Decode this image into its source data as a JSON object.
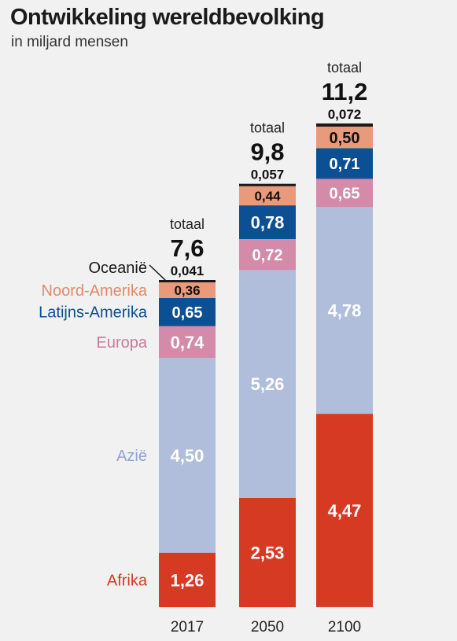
{
  "chart_data": {
    "type": "bar",
    "stacked": true,
    "title": "Ontwikkeling wereldbevolking",
    "subtitle": "in miljard mensen",
    "categories": [
      "2017",
      "2050",
      "2100"
    ],
    "series": [
      {
        "name": "Afrika",
        "color": "#d63a22",
        "values": [
          1.26,
          2.53,
          4.47
        ],
        "labels": [
          "1,26",
          "2,53",
          "4,47"
        ]
      },
      {
        "name": "Azië",
        "color": "#b0bedb",
        "values": [
          4.5,
          5.26,
          4.78
        ],
        "labels": [
          "4,50",
          "5,26",
          "4,78"
        ]
      },
      {
        "name": "Europa",
        "color": "#d48aa9",
        "values": [
          0.74,
          0.72,
          0.65
        ],
        "labels": [
          "0,74",
          "0,72",
          "0,65"
        ]
      },
      {
        "name": "Latijns-Amerika",
        "color": "#0d4f93",
        "values": [
          0.65,
          0.78,
          0.71
        ],
        "labels": [
          "0,65",
          "0,78",
          "0,71"
        ]
      },
      {
        "name": "Noord-Amerika",
        "color": "#e99a7b",
        "values": [
          0.36,
          0.44,
          0.5
        ],
        "labels": [
          "0,36",
          "0,44",
          "0,50"
        ]
      },
      {
        "name": "Oceanië",
        "color": "#1a1a1a",
        "values": [
          0.041,
          0.057,
          0.072
        ],
        "labels": [
          "0,041",
          "0,057",
          "0,072"
        ]
      }
    ],
    "totals": [
      {
        "caption": "totaal",
        "value": 7.6,
        "label": "7,6"
      },
      {
        "caption": "totaal",
        "value": 9.8,
        "label": "9,8"
      },
      {
        "caption": "totaal",
        "value": 11.2,
        "label": "11,2"
      }
    ],
    "legend_colors": {
      "Afrika": "#d63a22",
      "Azië": "#8fa4cf",
      "Europa": "#c97a9c",
      "Latijns-Amerika": "#0d4f93",
      "Noord-Amerika": "#e08a68",
      "Oceanië": "#1a1a1a"
    }
  }
}
